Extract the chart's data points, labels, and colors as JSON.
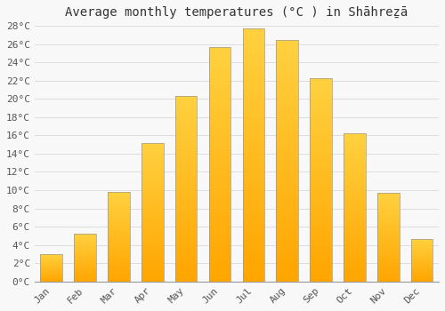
{
  "title": "Average monthly temperatures (°C ) in Shāhreẕā",
  "months": [
    "Jan",
    "Feb",
    "Mar",
    "Apr",
    "May",
    "Jun",
    "Jul",
    "Aug",
    "Sep",
    "Oct",
    "Nov",
    "Dec"
  ],
  "temperatures": [
    3.0,
    5.2,
    9.8,
    15.2,
    20.3,
    25.7,
    27.7,
    26.4,
    22.3,
    16.2,
    9.7,
    4.7
  ],
  "bar_color": "#FFA500",
  "bar_edge_color": "#888888",
  "ylim": [
    0,
    28
  ],
  "ytick_step": 2,
  "background_color": "#f8f8f8",
  "grid_color": "#dddddd",
  "title_fontsize": 10,
  "tick_fontsize": 8,
  "bar_width": 0.65
}
